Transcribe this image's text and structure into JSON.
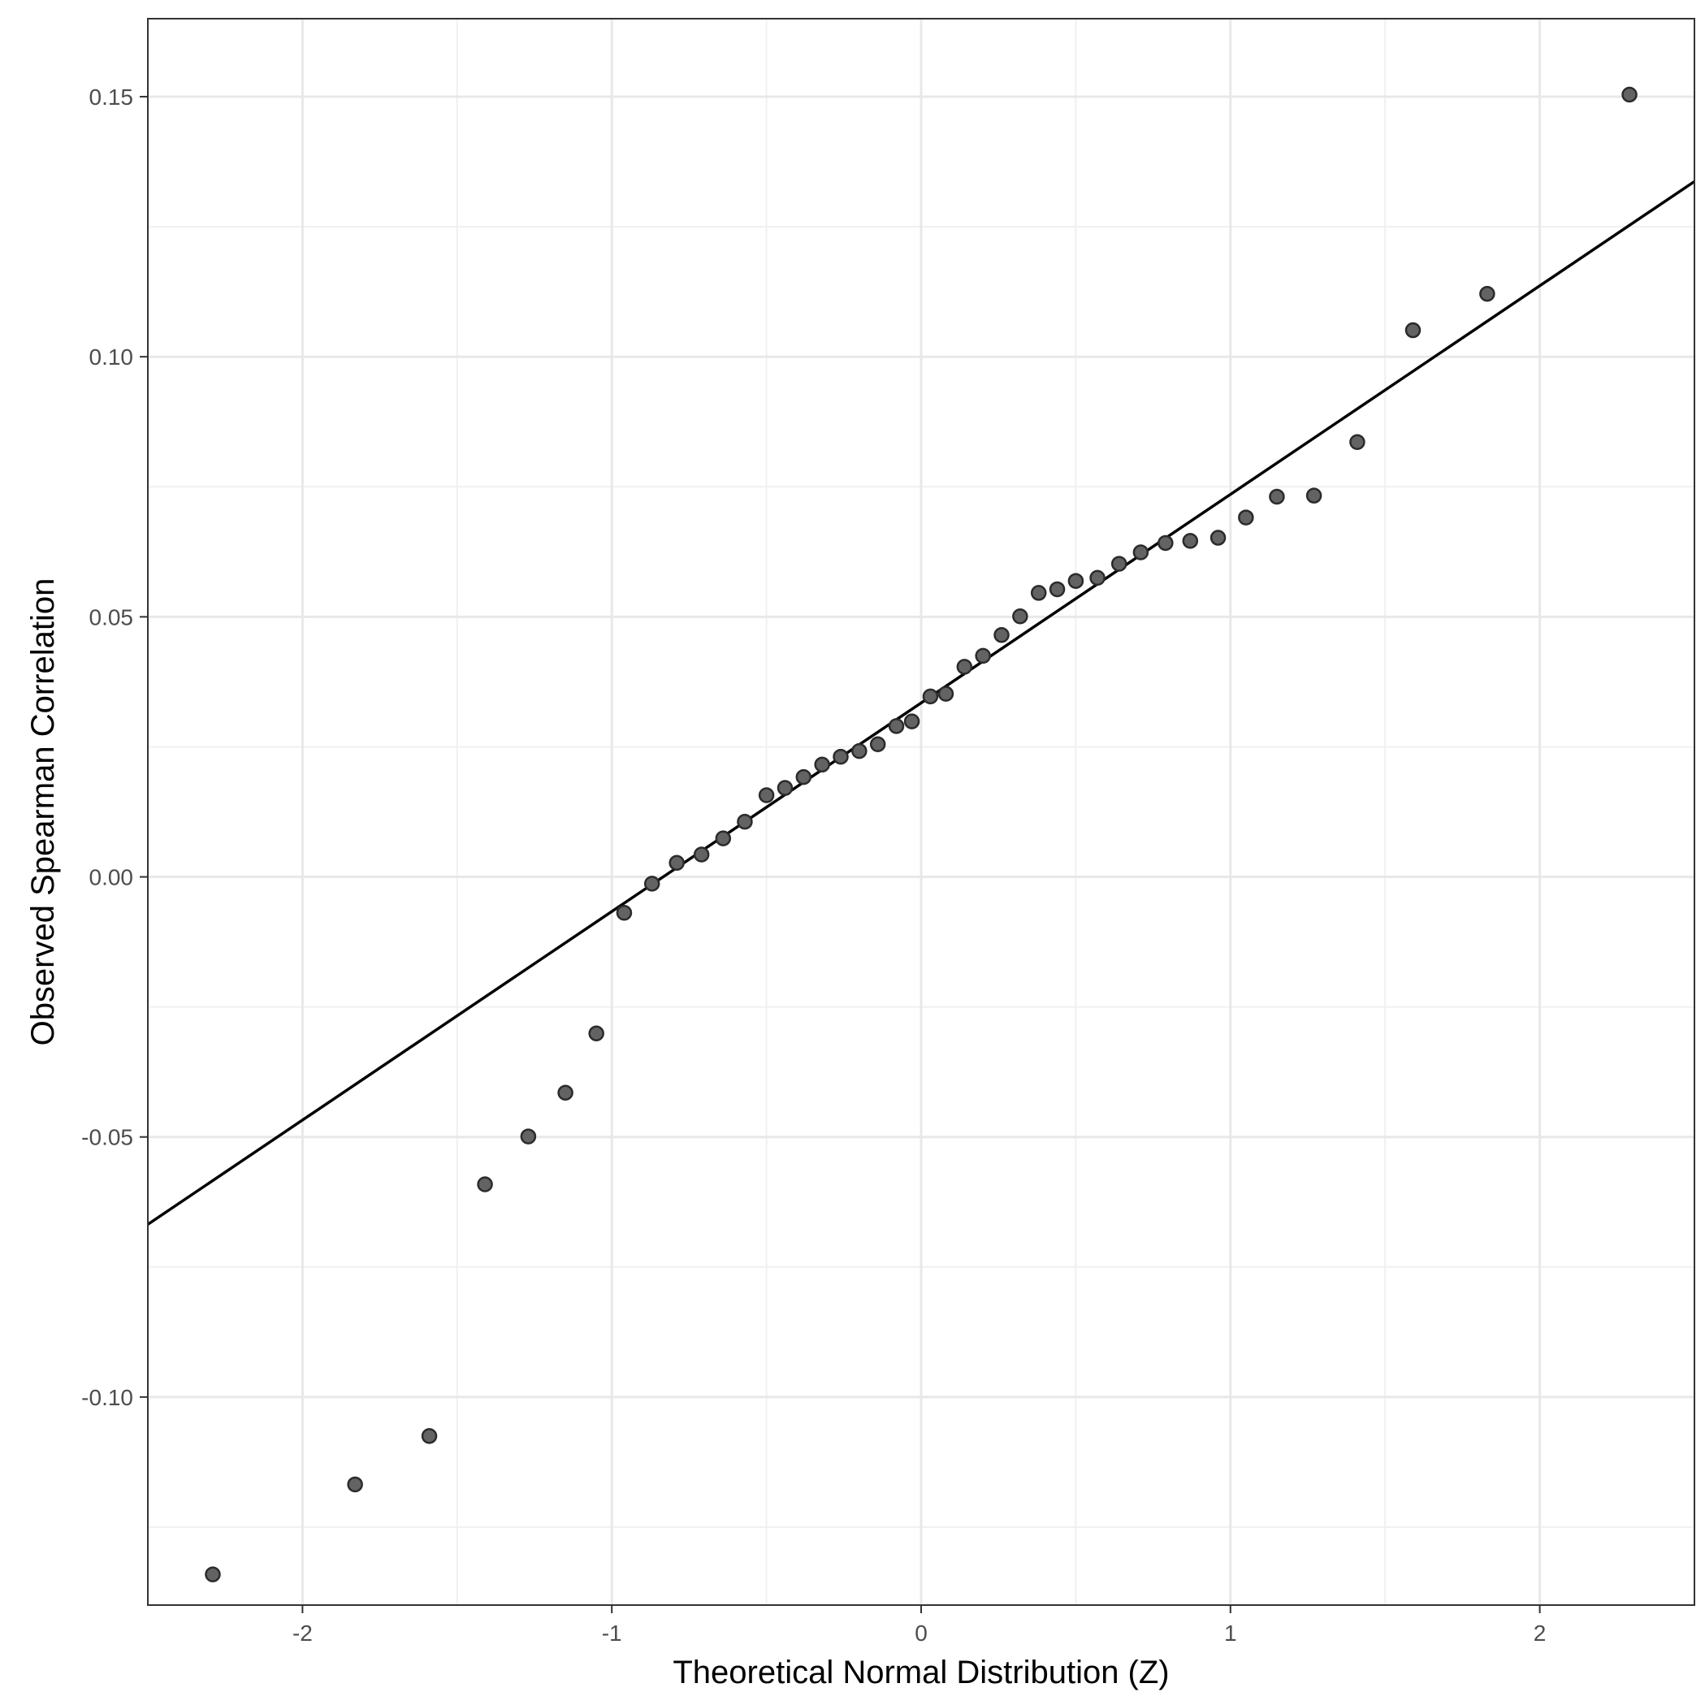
{
  "chart_data": {
    "type": "scatter",
    "title": "",
    "xlabel": "Theoretical Normal Distribution (Z)",
    "ylabel": "Observed Spearman Correlation",
    "xlim": [
      -2.5,
      2.5
    ],
    "ylim": [
      -0.14,
      0.165
    ],
    "x_ticks": [
      -2,
      -1,
      0,
      1,
      2
    ],
    "x_tick_labels": [
      "-2",
      "-1",
      "0",
      "1",
      "2"
    ],
    "y_ticks": [
      -0.1,
      -0.05,
      0.0,
      0.05,
      0.1,
      0.15
    ],
    "y_tick_labels": [
      "-0.10",
      "-0.05",
      "0.00",
      "0.05",
      "0.10",
      "0.15"
    ],
    "grid": true,
    "legend": "none",
    "point_color": "#636363",
    "point_stroke": "#2b2b2b",
    "line_color": "#000000",
    "reference_line": {
      "x": [
        -2.5,
        2.5
      ],
      "y": [
        -0.0668,
        0.1337
      ]
    },
    "points": [
      {
        "x": -2.29,
        "y": -0.1341
      },
      {
        "x": -1.83,
        "y": -0.1168
      },
      {
        "x": -1.59,
        "y": -0.1075
      },
      {
        "x": -1.41,
        "y": -0.0591
      },
      {
        "x": -1.27,
        "y": -0.0499
      },
      {
        "x": -1.15,
        "y": -0.0415
      },
      {
        "x": -1.05,
        "y": -0.0301
      },
      {
        "x": -0.96,
        "y": -0.0069
      },
      {
        "x": -0.87,
        "y": -0.0013
      },
      {
        "x": -0.79,
        "y": 0.0027
      },
      {
        "x": -0.71,
        "y": 0.0043
      },
      {
        "x": -0.64,
        "y": 0.0074
      },
      {
        "x": -0.57,
        "y": 0.0106
      },
      {
        "x": -0.5,
        "y": 0.0157
      },
      {
        "x": -0.44,
        "y": 0.0171
      },
      {
        "x": -0.38,
        "y": 0.0192
      },
      {
        "x": -0.32,
        "y": 0.0216
      },
      {
        "x": -0.26,
        "y": 0.0231
      },
      {
        "x": -0.2,
        "y": 0.0242
      },
      {
        "x": -0.14,
        "y": 0.0255
      },
      {
        "x": -0.08,
        "y": 0.029
      },
      {
        "x": -0.03,
        "y": 0.0299
      },
      {
        "x": 0.03,
        "y": 0.0347
      },
      {
        "x": 0.08,
        "y": 0.0352
      },
      {
        "x": 0.14,
        "y": 0.0404
      },
      {
        "x": 0.2,
        "y": 0.0425
      },
      {
        "x": 0.26,
        "y": 0.0465
      },
      {
        "x": 0.32,
        "y": 0.0501
      },
      {
        "x": 0.38,
        "y": 0.0546
      },
      {
        "x": 0.44,
        "y": 0.0553
      },
      {
        "x": 0.5,
        "y": 0.0569
      },
      {
        "x": 0.57,
        "y": 0.0575
      },
      {
        "x": 0.64,
        "y": 0.0602
      },
      {
        "x": 0.71,
        "y": 0.0624
      },
      {
        "x": 0.79,
        "y": 0.0642
      },
      {
        "x": 0.87,
        "y": 0.0646
      },
      {
        "x": 0.96,
        "y": 0.0652
      },
      {
        "x": 1.05,
        "y": 0.0691
      },
      {
        "x": 1.15,
        "y": 0.0731
      },
      {
        "x": 1.27,
        "y": 0.0733
      },
      {
        "x": 1.41,
        "y": 0.0836
      },
      {
        "x": 1.59,
        "y": 0.1051
      },
      {
        "x": 1.83,
        "y": 0.1121
      },
      {
        "x": 2.29,
        "y": 0.1504
      }
    ]
  }
}
